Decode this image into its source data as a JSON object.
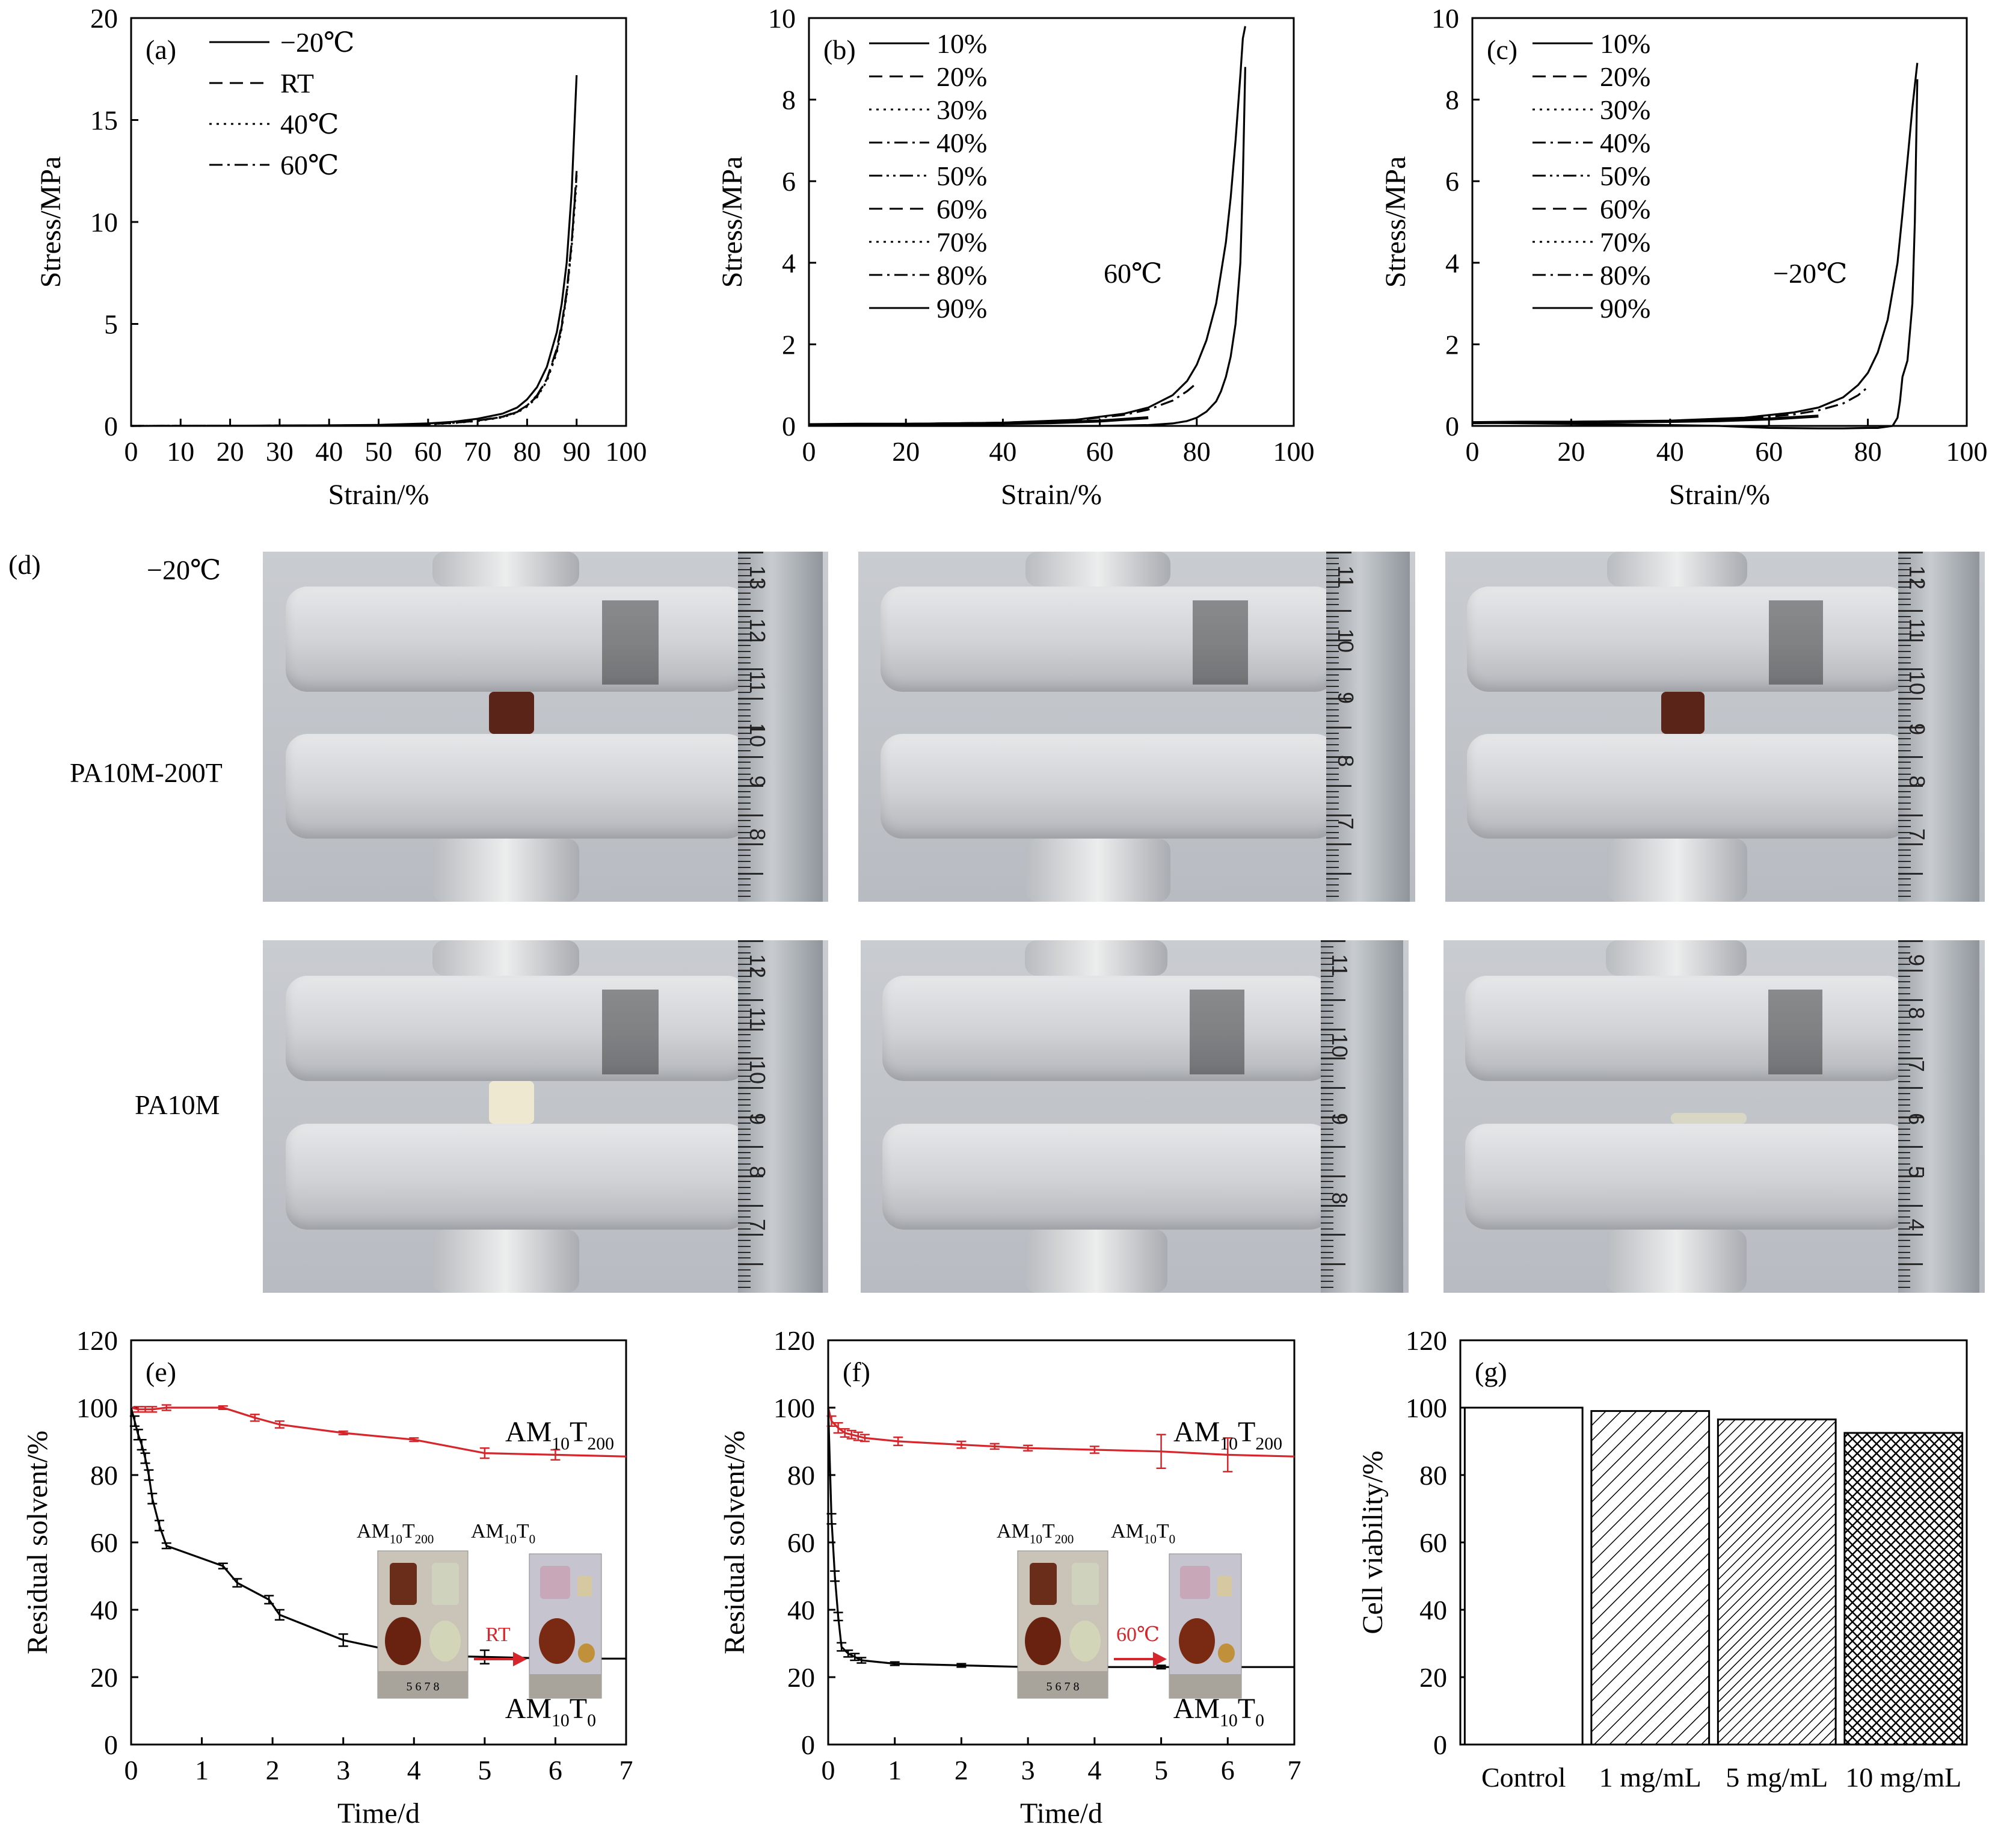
{
  "colors": {
    "black": "#000000",
    "red": "#d7262b"
  },
  "chart_data": [
    {
      "id": "a",
      "type": "line",
      "panel_label": "(a)",
      "xlabel": "Strain/%",
      "ylabel": "Stress/MPa",
      "xlim": [
        0,
        100
      ],
      "ylim": [
        0,
        20
      ],
      "xticks": [
        0,
        10,
        20,
        30,
        40,
        50,
        60,
        70,
        80,
        90,
        100
      ],
      "yticks": [
        0,
        5,
        10,
        15,
        20
      ],
      "series": [
        {
          "name": "−20℃",
          "dash": "solid",
          "x": [
            0,
            20,
            40,
            50,
            60,
            65,
            70,
            75,
            78,
            80,
            82,
            84,
            86,
            87,
            88,
            89,
            90
          ],
          "y": [
            0,
            0.01,
            0.03,
            0.05,
            0.12,
            0.2,
            0.35,
            0.6,
            0.9,
            1.3,
            1.9,
            2.9,
            4.6,
            6.0,
            8.0,
            11.5,
            17.2
          ]
        },
        {
          "name": "RT",
          "dash": "dashed",
          "x": [
            0,
            20,
            40,
            50,
            60,
            65,
            70,
            75,
            78,
            80,
            82,
            84,
            86,
            87,
            88,
            89,
            90
          ],
          "y": [
            0,
            0.01,
            0.02,
            0.04,
            0.09,
            0.15,
            0.26,
            0.45,
            0.7,
            1.0,
            1.5,
            2.3,
            3.8,
            5.0,
            6.6,
            9.0,
            12.5
          ]
        },
        {
          "name": "40℃",
          "dash": "dotted",
          "x": [
            0,
            20,
            40,
            50,
            60,
            65,
            70,
            75,
            78,
            80,
            82,
            84,
            86,
            87,
            88,
            89,
            90
          ],
          "y": [
            0,
            0.01,
            0.02,
            0.04,
            0.08,
            0.14,
            0.24,
            0.42,
            0.65,
            0.95,
            1.4,
            2.2,
            3.6,
            4.8,
            6.4,
            8.8,
            12.0
          ]
        },
        {
          "name": "60℃",
          "dash": "dashdot",
          "x": [
            0,
            20,
            40,
            50,
            60,
            65,
            70,
            75,
            78,
            80,
            82,
            84,
            86,
            87,
            88,
            89,
            90
          ],
          "y": [
            0,
            0.01,
            0.02,
            0.04,
            0.09,
            0.15,
            0.25,
            0.44,
            0.68,
            1.0,
            1.45,
            2.3,
            3.7,
            4.9,
            6.5,
            9.0,
            12.3
          ]
        }
      ]
    },
    {
      "id": "b",
      "type": "line",
      "panel_label": "(b)",
      "annotation": "60℃",
      "xlabel": "Strain/%",
      "ylabel": "Stress/MPa",
      "xlim": [
        0,
        100
      ],
      "ylim": [
        0,
        10
      ],
      "xticks": [
        0,
        20,
        40,
        60,
        80,
        100
      ],
      "yticks": [
        0,
        2,
        4,
        6,
        8,
        10
      ],
      "legend": [
        "10%",
        "20%",
        "30%",
        "40%",
        "50%",
        "60%",
        "70%",
        "80%",
        "90%"
      ],
      "legend_dash": [
        "solid",
        "dashed",
        "dotted",
        "dashdot",
        "dashdotdot",
        "dashed",
        "dotted",
        "dashdot",
        "solid"
      ],
      "series": [
        {
          "name": "90% loading",
          "dash": "solid",
          "x": [
            0,
            20,
            40,
            55,
            65,
            70,
            75,
            78,
            80,
            82,
            84,
            86,
            87,
            88,
            89,
            89.5,
            90
          ],
          "y": [
            0.03,
            0.05,
            0.08,
            0.15,
            0.3,
            0.45,
            0.75,
            1.1,
            1.5,
            2.1,
            3.0,
            4.5,
            5.6,
            7.0,
            8.6,
            9.5,
            9.8
          ]
        },
        {
          "name": "90% unloading",
          "dash": "solid",
          "x": [
            90,
            89.5,
            89,
            88,
            87,
            86,
            85,
            84,
            82,
            80,
            78,
            75,
            70,
            60,
            50,
            40,
            20,
            0
          ],
          "y": [
            8.8,
            6.0,
            4.0,
            2.5,
            1.7,
            1.2,
            0.85,
            0.6,
            0.35,
            0.2,
            0.12,
            0.06,
            0.02,
            0.0,
            0.0,
            0.0,
            0.0,
            0.02
          ]
        },
        {
          "name": "80% loading",
          "dash": "dashdot",
          "x": [
            0,
            20,
            40,
            55,
            65,
            70,
            75,
            78,
            80
          ],
          "y": [
            0.03,
            0.05,
            0.08,
            0.14,
            0.27,
            0.4,
            0.62,
            0.85,
            1.05
          ]
        }
      ]
    },
    {
      "id": "c",
      "type": "line",
      "panel_label": "(c)",
      "annotation": "−20℃",
      "xlabel": "Strain/%",
      "ylabel": "Stress/MPa",
      "xlim": [
        0,
        100
      ],
      "ylim": [
        0,
        10
      ],
      "xticks": [
        0,
        20,
        40,
        60,
        80,
        100
      ],
      "yticks": [
        0,
        2,
        4,
        6,
        8,
        10
      ],
      "legend": [
        "10%",
        "20%",
        "30%",
        "40%",
        "50%",
        "60%",
        "70%",
        "80%",
        "90%"
      ],
      "legend_dash": [
        "solid",
        "dashed",
        "dotted",
        "dashdot",
        "dashdotdot",
        "dashed",
        "dotted",
        "dashdot",
        "solid"
      ],
      "series": [
        {
          "name": "90% loading",
          "dash": "solid",
          "x": [
            0,
            20,
            40,
            55,
            65,
            70,
            75,
            78,
            80,
            82,
            84,
            86,
            87,
            88,
            89,
            90
          ],
          "y": [
            0.08,
            0.1,
            0.13,
            0.2,
            0.33,
            0.45,
            0.7,
            1.0,
            1.3,
            1.8,
            2.6,
            4.0,
            5.2,
            6.5,
            7.8,
            8.9
          ]
        },
        {
          "name": "90% unloading",
          "dash": "solid",
          "x": [
            90,
            89.5,
            89,
            88,
            87,
            86.5,
            86,
            85,
            82,
            80,
            75,
            70,
            60,
            50,
            40,
            20,
            0
          ],
          "y": [
            8.5,
            5.0,
            3.0,
            1.6,
            1.2,
            0.6,
            0.2,
            0.0,
            -0.05,
            -0.05,
            -0.06,
            -0.06,
            -0.05,
            0.0,
            0.02,
            0.05,
            0.08
          ]
        },
        {
          "name": "80% loading",
          "dash": "dashdot",
          "x": [
            0,
            20,
            40,
            55,
            65,
            70,
            75,
            78,
            80
          ],
          "y": [
            0.08,
            0.1,
            0.12,
            0.17,
            0.28,
            0.38,
            0.55,
            0.75,
            0.95
          ]
        }
      ]
    },
    {
      "id": "e",
      "type": "line",
      "panel_label": "(e)",
      "xlabel": "Time/d",
      "ylabel": "Residual solvent/%",
      "xlim": [
        0,
        7
      ],
      "ylim": [
        0,
        120
      ],
      "xticks": [
        0,
        1,
        2,
        3,
        4,
        5,
        6,
        7
      ],
      "yticks": [
        0,
        20,
        40,
        60,
        80,
        100,
        120
      ],
      "series": [
        {
          "name": "AM10T200",
          "color": "red",
          "x": [
            0,
            0.1,
            0.2,
            0.3,
            0.5,
            1.3,
            1.75,
            2.1,
            3,
            4,
            5,
            6,
            7
          ],
          "y": [
            100,
            99.5,
            99.5,
            99.5,
            100,
            100,
            97,
            95,
            92.5,
            90.5,
            86.5,
            86,
            85.5
          ],
          "err": [
            0,
            0.8,
            0.8,
            0.8,
            0.8,
            0.5,
            1.0,
            1.0,
            0.5,
            0.5,
            1.5,
            1.5,
            0
          ]
        },
        {
          "name": "AM10T0",
          "color": "black",
          "x": [
            0,
            0.05,
            0.1,
            0.15,
            0.2,
            0.25,
            0.3,
            0.4,
            0.5,
            1.3,
            1.5,
            1.95,
            2.1,
            3,
            4,
            5,
            6,
            7
          ],
          "y": [
            100,
            96,
            92,
            89,
            85,
            80,
            73,
            65,
            59,
            53,
            48,
            43,
            38.5,
            31,
            26.5,
            26,
            25.5,
            25.5
          ],
          "err": [
            0,
            1.5,
            1.5,
            1.5,
            1.5,
            1.5,
            1.5,
            1.5,
            0.8,
            0.8,
            1.2,
            1.2,
            1.5,
            1.8,
            2.0,
            2.0,
            2.0,
            0
          ]
        }
      ],
      "labels": [
        "AM",
        "10",
        "T",
        "200",
        "AM",
        "10",
        "T",
        "0"
      ],
      "inset": {
        "top_left": [
          "AM",
          "10",
          "T",
          "200"
        ],
        "top_right": [
          "AM",
          "10",
          "T",
          "0"
        ],
        "arrow_label": "RT",
        "ruler_numbers": "5 6 7 8"
      }
    },
    {
      "id": "f",
      "type": "line",
      "panel_label": "(f)",
      "xlabel": "Time/d",
      "ylabel": "Residual solvent/%",
      "xlim": [
        0,
        7
      ],
      "ylim": [
        0,
        120
      ],
      "xticks": [
        0,
        1,
        2,
        3,
        4,
        5,
        6,
        7
      ],
      "yticks": [
        0,
        20,
        40,
        60,
        80,
        100,
        120
      ],
      "series": [
        {
          "name": "AM10T200",
          "color": "red",
          "x": [
            0,
            0.05,
            0.15,
            0.25,
            0.35,
            0.45,
            0.55,
            1.05,
            2,
            2.5,
            3,
            4,
            5,
            6,
            7
          ],
          "y": [
            100,
            96,
            94,
            92.5,
            92,
            91.5,
            91,
            90,
            89,
            88.5,
            88,
            87.5,
            87,
            86,
            85.5
          ],
          "err": [
            0,
            1.5,
            1.5,
            1.2,
            1.2,
            1.2,
            1.0,
            1.2,
            1.0,
            0.8,
            0.8,
            1.0,
            5.0,
            5.0,
            0
          ]
        },
        {
          "name": "AM10T0",
          "color": "black",
          "x": [
            0,
            0.05,
            0.1,
            0.15,
            0.2,
            0.3,
            0.4,
            0.5,
            1,
            2,
            3,
            4,
            5,
            6,
            7
          ],
          "y": [
            100,
            67,
            50,
            38,
            29,
            27,
            26,
            25,
            24,
            23.5,
            23,
            23,
            23,
            23,
            23
          ],
          "err": [
            0,
            1.5,
            1.5,
            1.2,
            1.2,
            1.0,
            1.0,
            0.8,
            0.5,
            0.5,
            0.5,
            0.5,
            0.5,
            0.5,
            0
          ]
        }
      ],
      "labels": [
        "AM",
        "10",
        "T",
        "200",
        "AM",
        "10",
        "T",
        "0"
      ],
      "inset": {
        "top_left": [
          "AM",
          "10",
          "T",
          "200"
        ],
        "top_right": [
          "AM",
          "10",
          "T",
          "0"
        ],
        "arrow_label": "60℃",
        "ruler_numbers": "5 6 7 8"
      }
    },
    {
      "id": "g",
      "type": "bar",
      "panel_label": "(g)",
      "xlabel": "",
      "ylabel": "Cell viability/%",
      "ylim": [
        0,
        120
      ],
      "yticks": [
        0,
        20,
        40,
        60,
        80,
        100,
        120
      ],
      "categories": [
        "Control",
        "1 mg/mL",
        "5 mg/mL",
        "10 mg/mL"
      ],
      "values": [
        100,
        99,
        96.5,
        92.5
      ],
      "fills": [
        "none",
        "hatch-diag",
        "hatch-diag-dense",
        "hatch-cross"
      ]
    }
  ],
  "panel_d": {
    "panel_label": "(d)",
    "condition_label": "−20℃",
    "rows": [
      {
        "label": "PA10M-200T",
        "ruler_numbers": [
          [
            "13",
            "12",
            "11",
            "10",
            "9",
            "8"
          ],
          [
            "11",
            "10",
            "9",
            "8",
            "7"
          ],
          [
            "12",
            "11",
            "10",
            "9",
            "8",
            "7"
          ]
        ]
      },
      {
        "label": "PA10M",
        "ruler_numbers": [
          [
            "12",
            "11",
            "10",
            "9",
            "8",
            "7"
          ],
          [
            "11",
            "10",
            "9",
            "8"
          ],
          [
            "9",
            "8",
            "7",
            "6",
            "5",
            "4"
          ]
        ]
      }
    ]
  }
}
